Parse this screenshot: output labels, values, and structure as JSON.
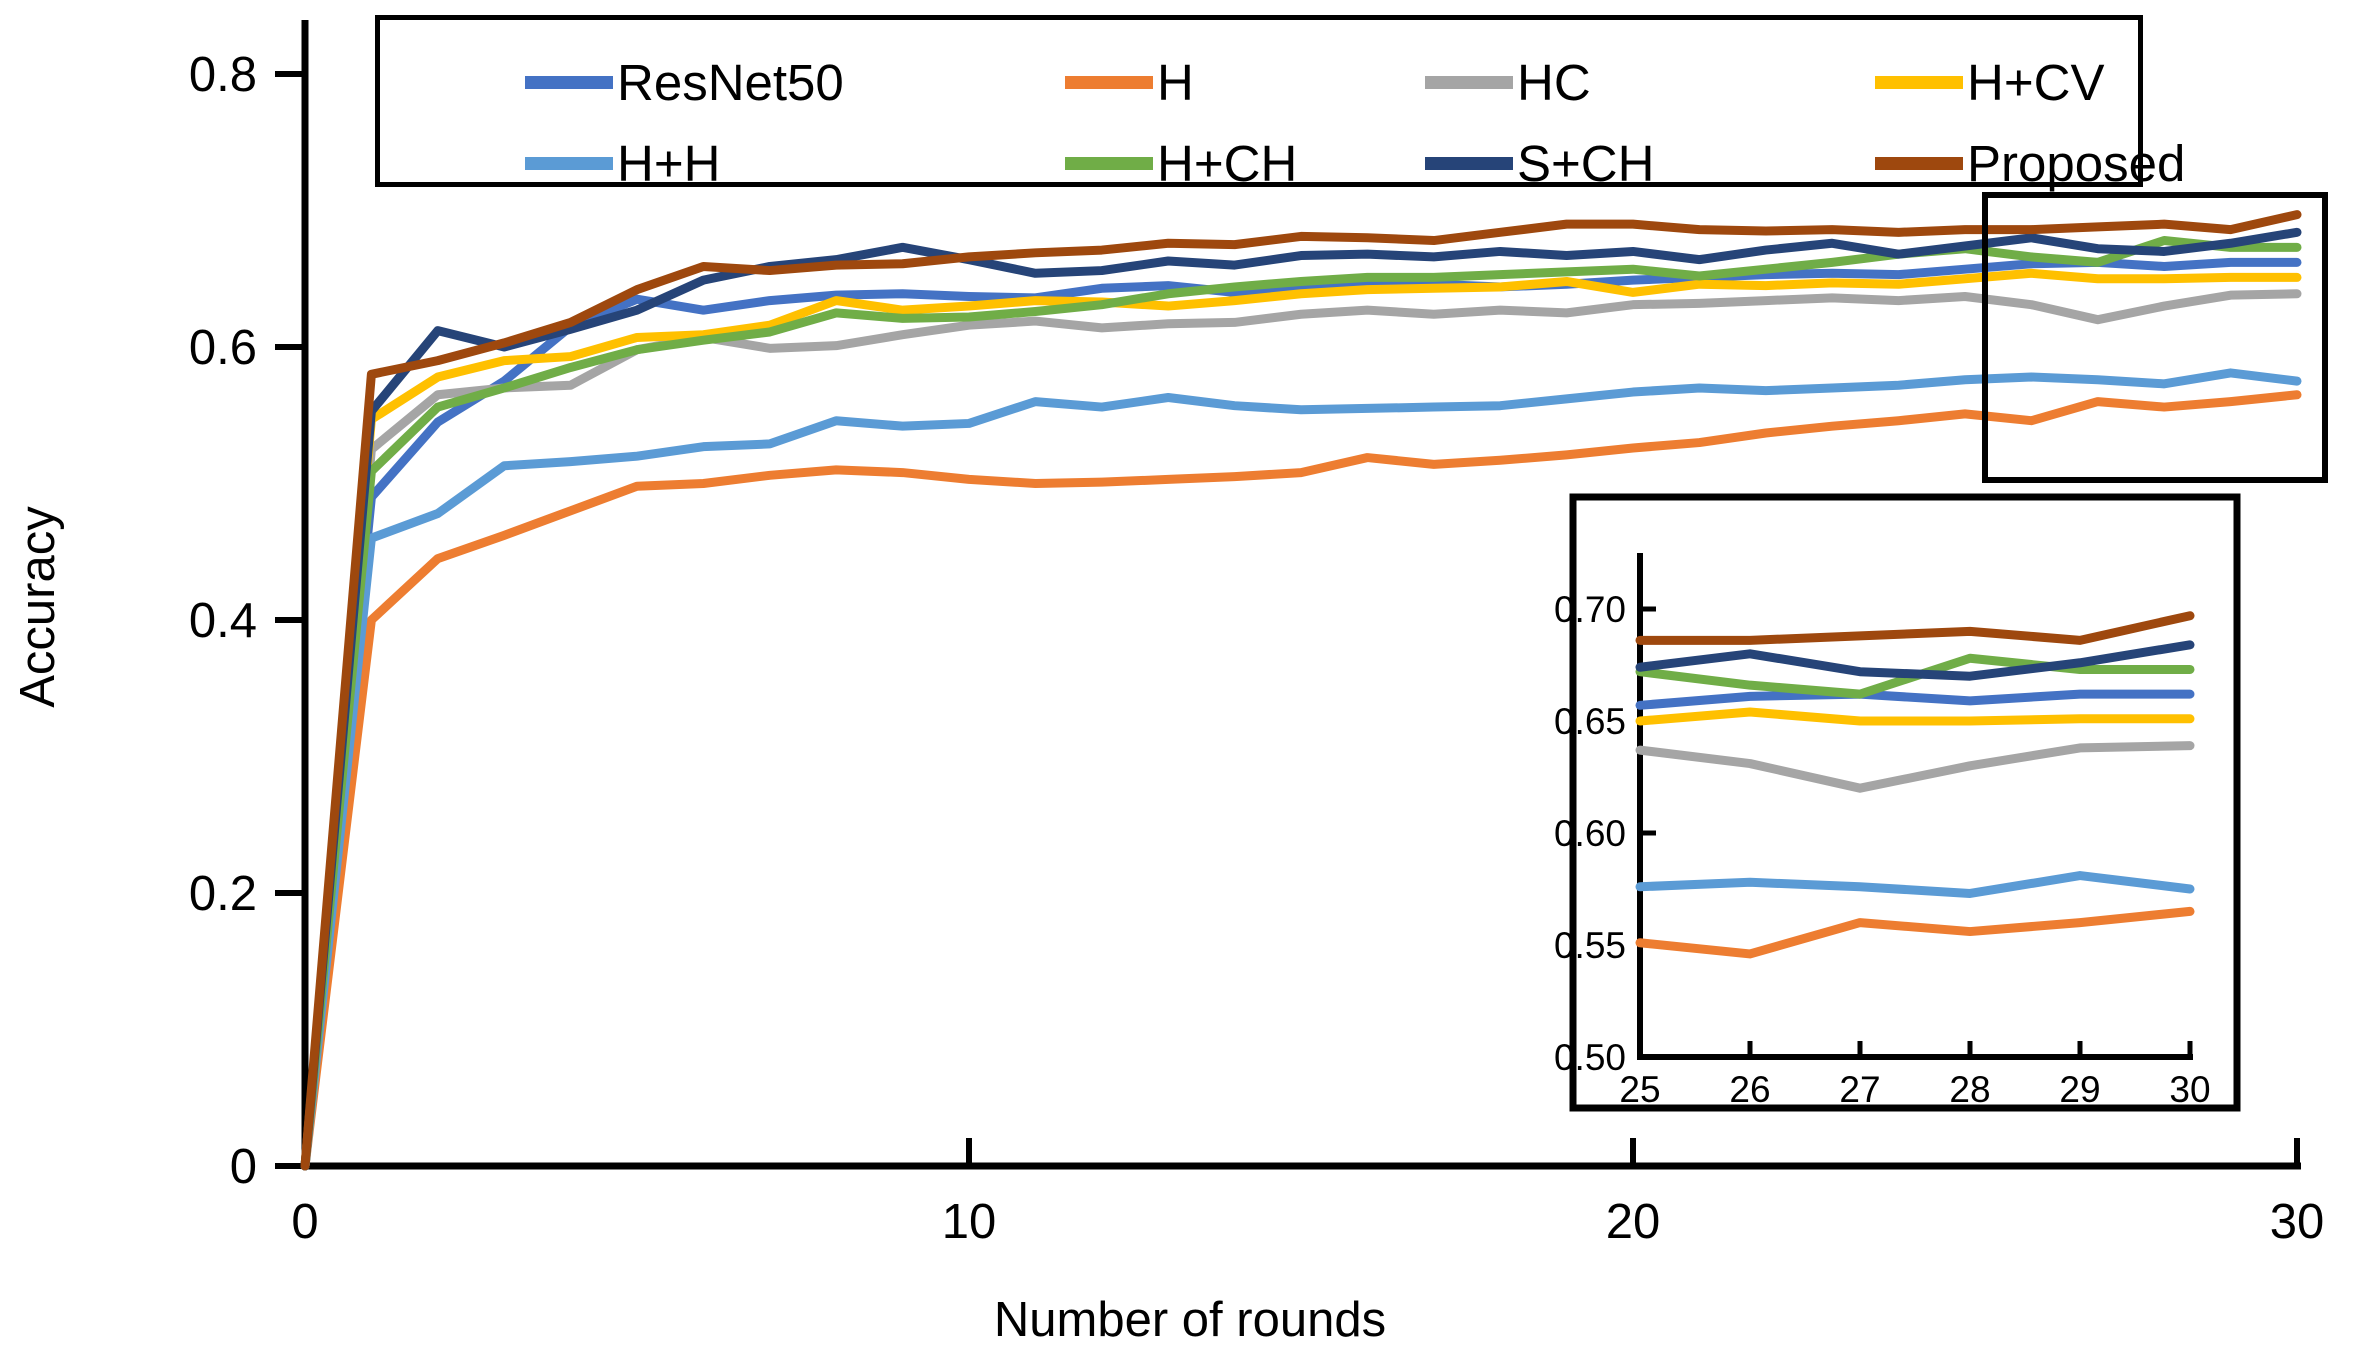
{
  "chart_data": {
    "type": "line",
    "title": "",
    "xlabel": "Number of rounds",
    "ylabel": "Accuracy",
    "xlim": [
      0,
      30
    ],
    "ylim": [
      0,
      0.84
    ],
    "x_ticks": [
      "0",
      "10",
      "20",
      "30"
    ],
    "x_tick_values": [
      0,
      10,
      20,
      30
    ],
    "y_ticks": [
      "0",
      "0.2",
      "0.4",
      "0.6",
      "0.8"
    ],
    "y_tick_values": [
      0,
      0.2,
      0.4,
      0.6,
      0.8
    ],
    "grid": "off",
    "legend_position": "top",
    "x": [
      0,
      1,
      2,
      3,
      4,
      5,
      6,
      7,
      8,
      9,
      10,
      11,
      12,
      13,
      14,
      15,
      16,
      17,
      18,
      19,
      20,
      21,
      22,
      23,
      24,
      25,
      26,
      27,
      28,
      29,
      30
    ],
    "series": [
      {
        "name": "ResNet50",
        "color": "#4472C4",
        "values": [
          0,
          0.49,
          0.545,
          0.575,
          0.615,
          0.635,
          0.627,
          0.634,
          0.638,
          0.639,
          0.637,
          0.636,
          0.643,
          0.645,
          0.64,
          0.644,
          0.645,
          0.646,
          0.644,
          0.646,
          0.649,
          0.651,
          0.653,
          0.654,
          0.653,
          0.657,
          0.661,
          0.662,
          0.659,
          0.662,
          0.662
        ]
      },
      {
        "name": "H",
        "color": "#ED7D31",
        "values": [
          0,
          0.4,
          0.445,
          0.462,
          0.48,
          0.498,
          0.5,
          0.506,
          0.51,
          0.508,
          0.503,
          0.5,
          0.501,
          0.503,
          0.505,
          0.508,
          0.519,
          0.514,
          0.517,
          0.521,
          0.526,
          0.53,
          0.537,
          0.542,
          0.546,
          0.551,
          0.546,
          0.56,
          0.556,
          0.56,
          0.565
        ]
      },
      {
        "name": "HC",
        "color": "#A5A5A5",
        "values": [
          0,
          0.525,
          0.565,
          0.57,
          0.572,
          0.598,
          0.607,
          0.599,
          0.601,
          0.609,
          0.616,
          0.619,
          0.614,
          0.617,
          0.618,
          0.624,
          0.627,
          0.624,
          0.627,
          0.625,
          0.631,
          0.632,
          0.634,
          0.636,
          0.634,
          0.637,
          0.631,
          0.62,
          0.63,
          0.638,
          0.639
        ]
      },
      {
        "name": "H+CV",
        "color": "#FFC000",
        "values": [
          0,
          0.547,
          0.578,
          0.59,
          0.593,
          0.607,
          0.609,
          0.616,
          0.634,
          0.627,
          0.63,
          0.634,
          0.633,
          0.63,
          0.634,
          0.639,
          0.642,
          0.643,
          0.644,
          0.648,
          0.64,
          0.646,
          0.645,
          0.647,
          0.646,
          0.65,
          0.654,
          0.65,
          0.65,
          0.651,
          0.651
        ]
      },
      {
        "name": "H+H",
        "color": "#5B9BD5",
        "values": [
          0,
          0.46,
          0.478,
          0.513,
          0.516,
          0.52,
          0.527,
          0.529,
          0.546,
          0.542,
          0.544,
          0.56,
          0.556,
          0.563,
          0.557,
          0.554,
          0.555,
          0.556,
          0.557,
          0.562,
          0.567,
          0.57,
          0.568,
          0.57,
          0.572,
          0.576,
          0.578,
          0.576,
          0.573,
          0.581,
          0.575
        ]
      },
      {
        "name": "H+CH",
        "color": "#70AD47",
        "values": [
          0,
          0.509,
          0.556,
          0.57,
          0.585,
          0.598,
          0.605,
          0.611,
          0.625,
          0.621,
          0.622,
          0.626,
          0.631,
          0.639,
          0.644,
          0.648,
          0.651,
          0.651,
          0.653,
          0.655,
          0.657,
          0.652,
          0.657,
          0.662,
          0.668,
          0.672,
          0.666,
          0.662,
          0.678,
          0.673,
          0.673
        ]
      },
      {
        "name": "S+CH",
        "color": "#264478",
        "values": [
          0,
          0.553,
          0.612,
          0.6,
          0.613,
          0.627,
          0.649,
          0.659,
          0.664,
          0.673,
          0.664,
          0.654,
          0.656,
          0.663,
          0.66,
          0.667,
          0.668,
          0.666,
          0.67,
          0.667,
          0.67,
          0.664,
          0.671,
          0.676,
          0.668,
          0.674,
          0.68,
          0.672,
          0.67,
          0.676,
          0.684
        ]
      },
      {
        "name": "Proposed",
        "color": "#9E480E",
        "values": [
          0,
          0.58,
          0.59,
          0.603,
          0.618,
          0.642,
          0.659,
          0.656,
          0.66,
          0.661,
          0.666,
          0.669,
          0.671,
          0.676,
          0.675,
          0.681,
          0.68,
          0.678,
          0.684,
          0.69,
          0.69,
          0.686,
          0.685,
          0.686,
          0.684,
          0.686,
          0.686,
          0.688,
          0.69,
          0.686,
          0.697
        ]
      }
    ],
    "inset": {
      "x_range": [
        25,
        30
      ],
      "x_ticks": [
        "25",
        "26",
        "27",
        "28",
        "29",
        "30"
      ],
      "x_tick_values": [
        25,
        26,
        27,
        28,
        29,
        30
      ],
      "y_ticks": [
        "0.70",
        "0.65",
        "0.60",
        "0.55",
        "0.50"
      ],
      "y_tick_values": [
        0.7,
        0.65,
        0.6,
        0.55,
        0.5
      ],
      "ylim": [
        0.5,
        0.725
      ]
    }
  }
}
